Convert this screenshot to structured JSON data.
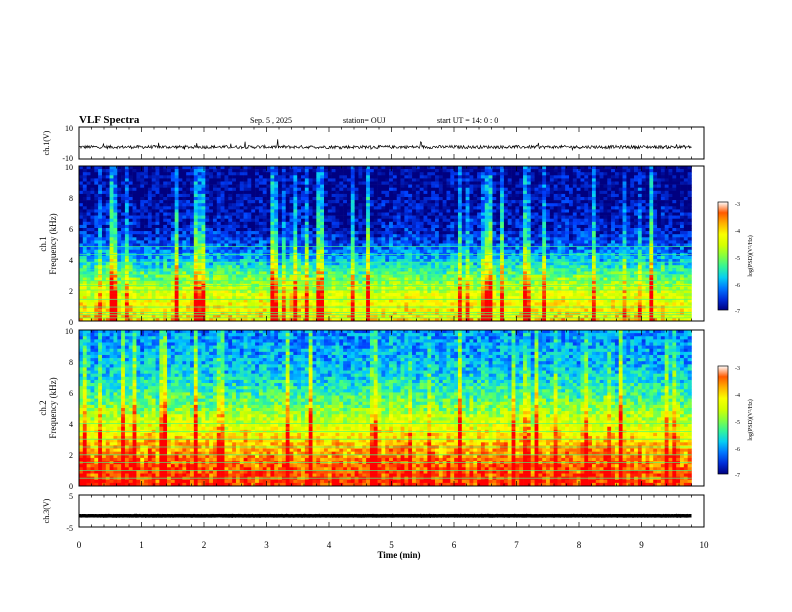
{
  "header": {
    "title": "VLF Spectra",
    "date": "Sep. 5  , 2025",
    "station": "station= OUJ",
    "start_ut": "start  UT =   14: 0  : 0"
  },
  "colorbar": {
    "label": "log(PSD)(V²/Hz)",
    "ticks": [
      "-3",
      "-4",
      "-5",
      "-6",
      "-7"
    ],
    "colors": [
      "#000080",
      "#0040ff",
      "#00c8ff",
      "#40ff80",
      "#c8ff00",
      "#ffff00",
      "#ff8000",
      "#ff0000",
      "#ffffff"
    ]
  },
  "chart_data": [
    {
      "id": "ch1-waveform",
      "type": "line",
      "ylabel": "ch.1(V)",
      "ylim": [
        -10,
        10
      ],
      "y_ticklabels": [
        "10",
        "-10"
      ],
      "xlim": [
        0,
        10
      ],
      "baseline": -2.5,
      "amplitude": 1.0,
      "series": [
        {
          "color": "#000000"
        }
      ]
    },
    {
      "id": "ch1-spectrogram",
      "type": "heatmap",
      "ylabel": "ch.1\nFrequency (kHz)",
      "ylim": [
        0,
        10
      ],
      "y_ticklabels": [
        "10",
        "8",
        "6",
        "4",
        "2",
        "0"
      ],
      "xlim": [
        0,
        9.8
      ],
      "zlim": [
        -7,
        -3
      ],
      "profile": [
        -4.0,
        -4.2,
        -4.6,
        -5.2,
        -5.9,
        -6.4,
        -6.7,
        -6.8,
        -6.9,
        -6.9,
        -7.0
      ],
      "lines_khz": [
        0.2,
        0.4,
        0.55,
        0.9,
        1.4,
        2.0,
        2.3,
        2.6,
        3.0,
        3.3,
        3.8,
        4.3,
        4.8
      ]
    },
    {
      "id": "ch2-spectrogram",
      "type": "heatmap",
      "ylabel": "ch.2\nFrequency (kHz)",
      "ylim": [
        0,
        10
      ],
      "y_ticklabels": [
        "10",
        "8",
        "6",
        "4",
        "2",
        "0"
      ],
      "xlim": [
        0,
        9.8
      ],
      "zlim": [
        -7,
        -3
      ],
      "profile": [
        -3.2,
        -3.3,
        -3.6,
        -4.0,
        -4.5,
        -5.0,
        -5.4,
        -5.7,
        -5.9,
        -6.0,
        -6.1
      ],
      "lines_khz": [
        0.5,
        1.0,
        1.5,
        2.0,
        2.5,
        3.0,
        3.5,
        4.0
      ]
    },
    {
      "id": "ch3-waveform",
      "type": "line",
      "ylabel": "ch.3(V)",
      "ylim": [
        -5,
        5
      ],
      "y_ticklabels": [
        "5",
        "-5"
      ],
      "xlim": [
        0,
        10
      ],
      "baseline": -1.5,
      "amplitude": 0.05,
      "series": [
        {
          "color": "#000000"
        }
      ]
    }
  ],
  "x_axis": {
    "label": "Time (min)",
    "ticklabels": [
      "0",
      "1",
      "2",
      "3",
      "4",
      "5",
      "6",
      "7",
      "8",
      "9",
      "10"
    ]
  }
}
